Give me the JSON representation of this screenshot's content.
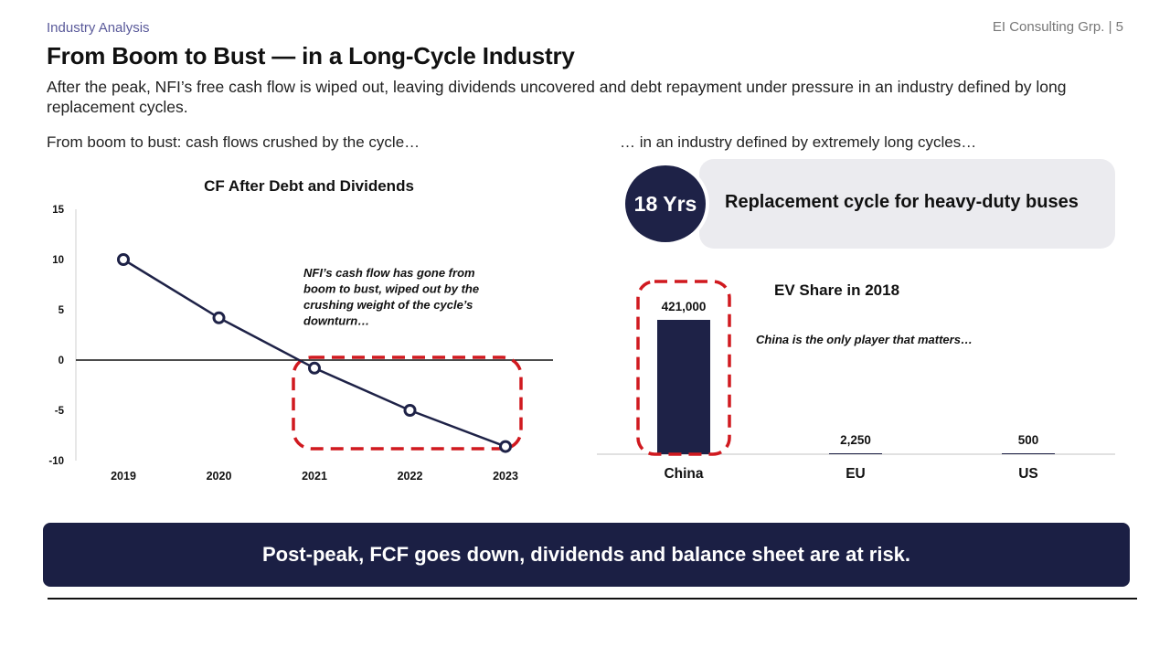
{
  "header": {
    "kicker": "Industry Analysis",
    "brand": "EI Consulting Grp. | 5",
    "title": "From Boom to Bust — in a Long-Cycle Industry",
    "subtitle": "After the peak, NFI’s free cash flow is wiped out, leaving dividends uncovered and debt repayment under pressure in an industry defined by long replacement cycles."
  },
  "left_panel": {
    "caption": "From boom to bust: cash flows crushed by the cycle…"
  },
  "right_panel": {
    "caption": "… in an industry defined by extremely long cycles…"
  },
  "callout": {
    "value": "18 Yrs",
    "text": "Replacement cycle for heavy-duty buses"
  },
  "banner": {
    "text": "Post-peak, FCF goes down, dividends and balance sheet are at risk."
  },
  "colors": {
    "navy": "#1e2247",
    "red_dash": "#d0191f",
    "callout_bg": "#ebebef"
  },
  "chart_data": [
    {
      "type": "line",
      "title": "CF After Debt and Dividends",
      "x": [
        "2019",
        "2020",
        "2021",
        "2022",
        "2023"
      ],
      "series": [
        {
          "values": [
            10,
            4.2,
            -0.8,
            -5,
            -8.6
          ]
        }
      ],
      "ylim": [
        -10,
        15
      ],
      "yticks": [
        15,
        10,
        5,
        0,
        -5,
        -10
      ],
      "grid": false,
      "annotation": [
        "NFI’s cash flow has gone from",
        "boom to bust, wiped out by the",
        "crushing weight of the cycle’s",
        "downturn…"
      ],
      "highlight": "2021–2023"
    },
    {
      "type": "bar",
      "title": "EV Share in 2018",
      "categories": [
        "China",
        "EU",
        "US"
      ],
      "values": [
        421000,
        2250,
        500
      ],
      "value_labels": [
        "421,000",
        "2,250",
        "500"
      ],
      "annotation": "China is the only player that matters…",
      "highlight": "China"
    }
  ]
}
